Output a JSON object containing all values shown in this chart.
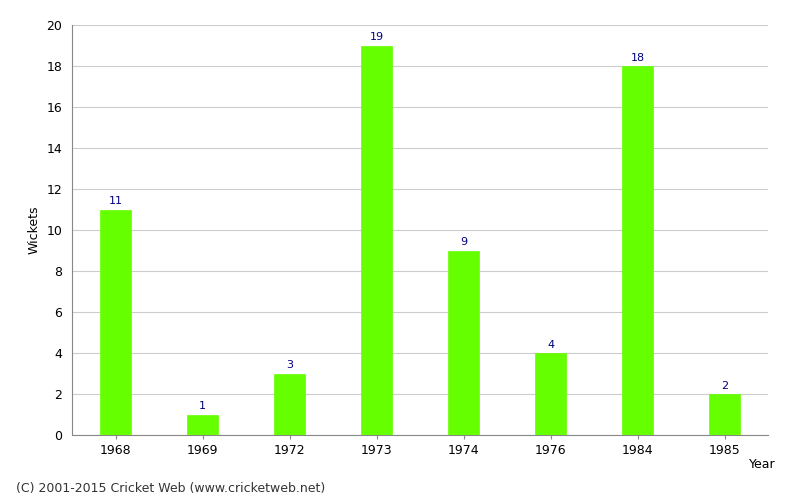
{
  "years": [
    "1968",
    "1969",
    "1972",
    "1973",
    "1974",
    "1976",
    "1984",
    "1985"
  ],
  "wickets": [
    11,
    1,
    3,
    19,
    9,
    4,
    18,
    2
  ],
  "bar_color": "#66ff00",
  "bar_edge_color": "#66ff00",
  "title": "",
  "xlabel": "Year",
  "ylabel": "Wickets",
  "ylim": [
    0,
    20
  ],
  "yticks": [
    0,
    2,
    4,
    6,
    8,
    10,
    12,
    14,
    16,
    18,
    20
  ],
  "label_color": "#000080",
  "label_fontsize": 8,
  "axis_fontsize": 9,
  "tick_fontsize": 9,
  "background_color": "#ffffff",
  "footer_text": "(C) 2001-2015 Cricket Web (www.cricketweb.net)",
  "footer_fontsize": 9,
  "grid_color": "#cccccc",
  "bar_width": 0.35
}
